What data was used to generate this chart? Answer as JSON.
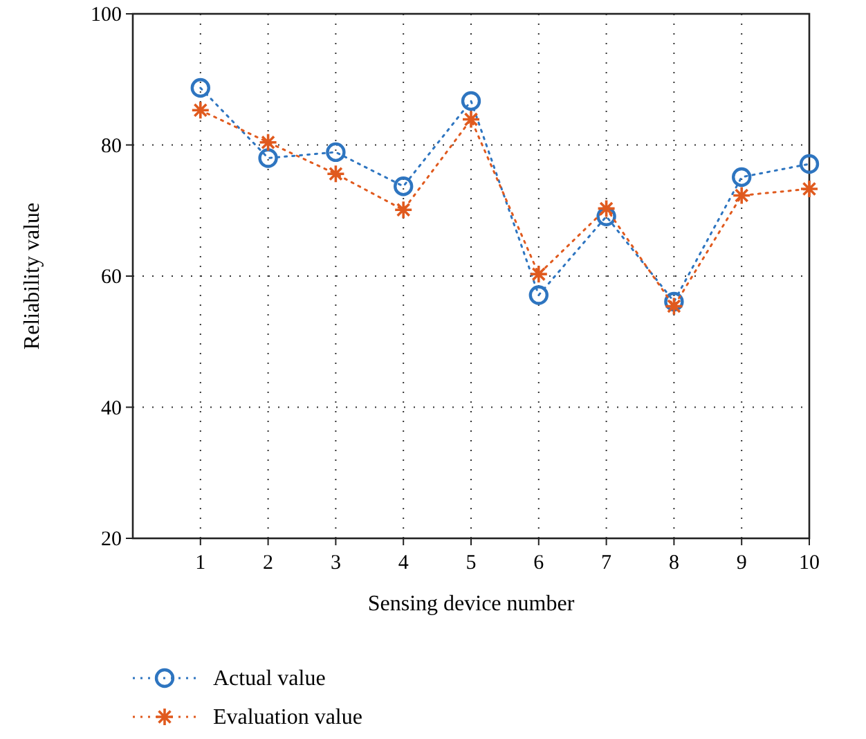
{
  "chart_data": {
    "type": "line",
    "xlabel": "Sensing device number",
    "ylabel": "Reliability value",
    "x": [
      1,
      2,
      3,
      4,
      5,
      6,
      7,
      8,
      9,
      10
    ],
    "series": [
      {
        "name": "Actual value",
        "color": "#2e75c0",
        "marker": "circle",
        "values": [
          88.7,
          78.0,
          78.9,
          73.7,
          86.7,
          57.1,
          69.1,
          56.1,
          75.1,
          77.1
        ]
      },
      {
        "name": "Evaluation value",
        "color": "#e05a1e",
        "marker": "cross",
        "values": [
          85.3,
          80.4,
          75.6,
          70.1,
          83.9,
          60.3,
          70.3,
          55.4,
          72.3,
          73.3
        ]
      }
    ],
    "xlim": [
      0,
      10
    ],
    "xticks": [
      1,
      2,
      3,
      4,
      5,
      6,
      7,
      8,
      9,
      10
    ],
    "ylim": [
      20,
      100
    ],
    "yticks": [
      20,
      40,
      60,
      80,
      100
    ],
    "grid": true,
    "line_style": "dotted",
    "legend": "bottom left"
  }
}
